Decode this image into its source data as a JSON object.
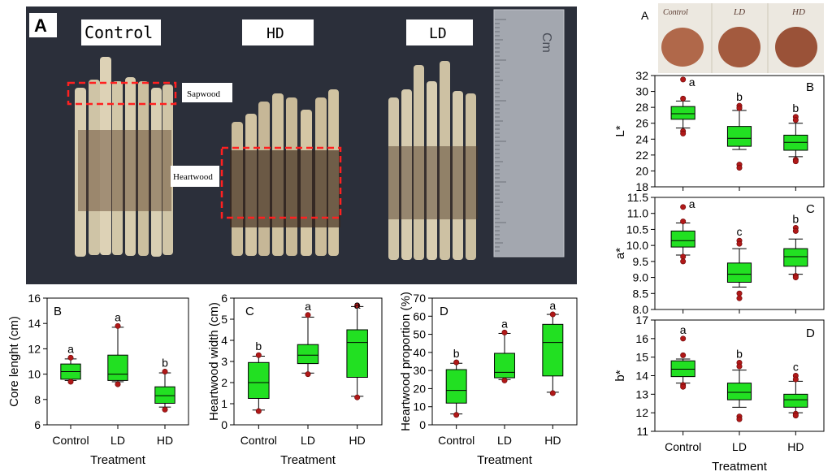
{
  "photo_a": {
    "panel_label": "A",
    "labels": [
      "Control",
      "HD",
      "LD"
    ],
    "sapwood": "Sapwood",
    "heartwood": "Heartwood",
    "ruler_text": "Cm"
  },
  "powder_photo": {
    "panel_label": "A",
    "labels": [
      "Control",
      "LD",
      "HD"
    ]
  },
  "chart_data": [
    {
      "id": "B-left",
      "type": "box",
      "panel": "B",
      "categories": [
        "Control",
        "LD",
        "HD"
      ],
      "xlabel": "Treatment",
      "ylabel": "Core lenght (cm)",
      "ylim": [
        6,
        16
      ],
      "yticks": [
        6,
        8,
        10,
        12,
        14,
        16
      ],
      "boxes": [
        {
          "wlo": 9.5,
          "q1": 9.6,
          "med": 10.2,
          "q3": 10.8,
          "whi": 11.2,
          "out": [
            11.3,
            9.4
          ]
        },
        {
          "wlo": 9.4,
          "q1": 9.5,
          "med": 10.0,
          "q3": 11.5,
          "whi": 13.7,
          "out": [
            13.8,
            9.2
          ]
        },
        {
          "wlo": 7.4,
          "q1": 7.7,
          "med": 8.3,
          "q3": 9.0,
          "whi": 10.1,
          "out": [
            10.2,
            7.2
          ]
        }
      ],
      "letters": [
        "a",
        "a",
        "b"
      ]
    },
    {
      "id": "C-left",
      "type": "box",
      "panel": "C",
      "categories": [
        "Control",
        "LD",
        "HD"
      ],
      "xlabel": "Treatment",
      "ylabel": "Heartwood width (cm)",
      "ylim": [
        0,
        6
      ],
      "yticks": [
        0,
        1,
        2,
        3,
        4,
        5,
        6
      ],
      "boxes": [
        {
          "wlo": 0.7,
          "q1": 1.25,
          "med": 2.0,
          "q3": 2.95,
          "whi": 3.25,
          "out": [
            3.3,
            0.65
          ]
        },
        {
          "wlo": 2.45,
          "q1": 2.9,
          "med": 3.3,
          "q3": 3.8,
          "whi": 5.1,
          "out": [
            5.2,
            2.4
          ]
        },
        {
          "wlo": 1.35,
          "q1": 2.25,
          "med": 3.9,
          "q3": 4.5,
          "whi": 5.6,
          "out": [
            5.65,
            1.3
          ]
        }
      ],
      "letters": [
        "b",
        "a",
        "a"
      ]
    },
    {
      "id": "D-left",
      "type": "box",
      "panel": "D",
      "categories": [
        "Control",
        "LD",
        "HD"
      ],
      "xlabel": "Treatment",
      "ylabel": "Heartwood proportion (%)",
      "ylim": [
        0,
        70
      ],
      "yticks": [
        0,
        10,
        20,
        30,
        40,
        50,
        60,
        70
      ],
      "boxes": [
        {
          "wlo": 6,
          "q1": 12,
          "med": 19,
          "q3": 30.5,
          "whi": 34,
          "out": [
            34.5,
            5.5
          ]
        },
        {
          "wlo": 25,
          "q1": 26,
          "med": 29,
          "q3": 39.5,
          "whi": 50.5,
          "out": [
            51,
            24.5
          ]
        },
        {
          "wlo": 18,
          "q1": 27,
          "med": 45.5,
          "q3": 55.5,
          "whi": 61,
          "out": [
            61,
            17.5
          ]
        }
      ],
      "letters": [
        "b",
        "a",
        "a"
      ]
    },
    {
      "id": "B-right",
      "type": "box",
      "panel": "B",
      "categories": [
        "Control",
        "LD",
        "HD"
      ],
      "xlabel": "",
      "ylabel": "L*",
      "ylim": [
        18,
        32
      ],
      "yticks": [
        18,
        20,
        22,
        24,
        26,
        28,
        30,
        32
      ],
      "boxes": [
        {
          "wlo": 25.4,
          "q1": 26.5,
          "med": 27.2,
          "q3": 28.1,
          "whi": 28.8,
          "out": [
            31.5,
            29.1,
            25.0,
            24.7
          ]
        },
        {
          "wlo": 22.7,
          "q1": 23.1,
          "med": 24.1,
          "q3": 25.6,
          "whi": 27.6,
          "out": [
            28.2,
            27.9,
            20.8,
            20.4
          ]
        },
        {
          "wlo": 21.8,
          "q1": 22.6,
          "med": 23.6,
          "q3": 24.5,
          "whi": 26.0,
          "out": [
            26.8,
            26.4,
            21.4,
            21.2
          ]
        }
      ],
      "letters": [
        "a",
        "b",
        "b"
      ]
    },
    {
      "id": "C-right",
      "type": "box",
      "panel": "C",
      "categories": [
        "Control",
        "LD",
        "HD"
      ],
      "xlabel": "",
      "ylabel": "a*",
      "ylim": [
        8.0,
        11.5
      ],
      "yticks": [
        8.0,
        8.5,
        9.0,
        9.5,
        10.0,
        10.5,
        11.0,
        11.5
      ],
      "boxes": [
        {
          "wlo": 9.7,
          "q1": 9.95,
          "med": 10.15,
          "q3": 10.45,
          "whi": 10.7,
          "out": [
            11.2,
            10.75,
            9.65,
            9.5
          ]
        },
        {
          "wlo": 8.7,
          "q1": 8.85,
          "med": 9.1,
          "q3": 9.45,
          "whi": 9.9,
          "out": [
            10.15,
            10.05,
            8.5,
            8.35
          ]
        },
        {
          "wlo": 9.1,
          "q1": 9.35,
          "med": 9.65,
          "q3": 9.9,
          "whi": 10.2,
          "out": [
            10.55,
            10.45,
            9.05,
            9.0
          ]
        }
      ],
      "letters": [
        "a",
        "c",
        "b"
      ]
    },
    {
      "id": "D-right",
      "type": "box",
      "panel": "D",
      "categories": [
        "Control",
        "LD",
        "HD"
      ],
      "xlabel": "Treatment",
      "ylabel": "b*",
      "ylim": [
        11,
        17
      ],
      "yticks": [
        11,
        12,
        13,
        14,
        15,
        16,
        17
      ],
      "boxes": [
        {
          "wlo": 13.6,
          "q1": 13.95,
          "med": 14.35,
          "q3": 14.8,
          "whi": 14.9,
          "out": [
            16.0,
            15.1,
            13.5,
            13.4
          ]
        },
        {
          "wlo": 12.3,
          "q1": 12.7,
          "med": 13.1,
          "q3": 13.6,
          "whi": 14.3,
          "out": [
            14.7,
            14.5,
            11.8,
            11.65
          ]
        },
        {
          "wlo": 12.0,
          "q1": 12.3,
          "med": 12.7,
          "q3": 13.0,
          "whi": 13.7,
          "out": [
            14.0,
            13.8,
            11.95,
            11.85
          ]
        }
      ],
      "letters": [
        "a",
        "b",
        "c"
      ]
    }
  ],
  "colors": {
    "box_fill": "#22e022",
    "outlier": "#b01818",
    "outlier_stroke": "#6a0808"
  }
}
